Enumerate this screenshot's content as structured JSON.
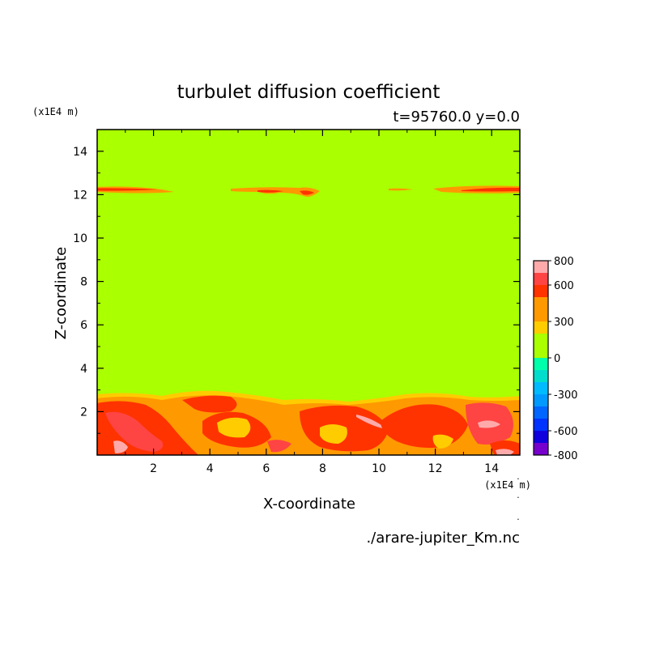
{
  "chart_data": {
    "type": "heatmap",
    "title": "turbulet diffusion coefficient",
    "subtitle": "t=95760.0 y=0.0",
    "xlabel": "X-coordinate",
    "ylabel": "Z-coordinate",
    "x_unit": "(x1E4 m)",
    "y_unit": "(x1E4 m)",
    "xlim": [
      0,
      15
    ],
    "ylim": [
      0,
      15
    ],
    "x_ticks": [
      2,
      4,
      6,
      8,
      10,
      12,
      14
    ],
    "y_ticks": [
      2,
      4,
      6,
      8,
      10,
      12,
      14
    ],
    "x_tick_labels": [
      "2",
      "4",
      "6",
      "8",
      "10",
      "12",
      "14"
    ],
    "y_tick_labels": [
      "2",
      "4",
      "6",
      "8",
      "10",
      "12",
      "14"
    ],
    "background_level_color": "#aaff00",
    "colorbar": {
      "levels": [
        {
          "from": -800,
          "to": -700,
          "color": "#7700cc"
        },
        {
          "from": -700,
          "to": -600,
          "color": "#1100dd"
        },
        {
          "from": -600,
          "to": -500,
          "color": "#0033ff"
        },
        {
          "from": -500,
          "to": -400,
          "color": "#0066ff"
        },
        {
          "from": -400,
          "to": -300,
          "color": "#0099ff"
        },
        {
          "from": -300,
          "to": -200,
          "color": "#00bbff"
        },
        {
          "from": -200,
          "to": -100,
          "color": "#00ddcc"
        },
        {
          "from": -100,
          "to": 0,
          "color": "#00ffaa"
        },
        {
          "from": 0,
          "to": 200,
          "color": "#aaff00"
        },
        {
          "from": 200,
          "to": 300,
          "color": "#ffcc00"
        },
        {
          "from": 300,
          "to": 500,
          "color": "#ff9900"
        },
        {
          "from": 500,
          "to": 600,
          "color": "#ff3300"
        },
        {
          "from": 600,
          "to": 700,
          "color": "#ff4444"
        },
        {
          "from": 700,
          "to": 800,
          "color": "#ffaaaa"
        }
      ],
      "tick_values": [
        800,
        600,
        300,
        0,
        -300,
        -600,
        -800
      ],
      "tick_labels": [
        "800",
        "600",
        "300",
        "0",
        "-300",
        "-600",
        "-800"
      ]
    },
    "footer": "./arare-jupiter_Km.nc"
  }
}
